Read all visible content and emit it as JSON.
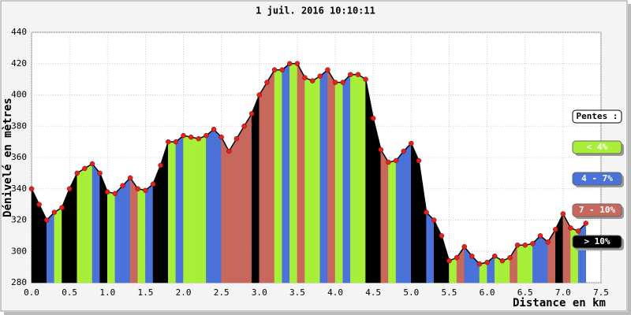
{
  "chart_data": {
    "type": "elevation-profile",
    "title": "1 juil. 2016 10:10:11",
    "x_label": "Distance en km",
    "y_label": "Dénivelé en mètres",
    "x": [
      0.0,
      0.1,
      0.2,
      0.3,
      0.4,
      0.5,
      0.6,
      0.7,
      0.8,
      0.9,
      1.0,
      1.1,
      1.2,
      1.3,
      1.4,
      1.5,
      1.6,
      1.7,
      1.8,
      1.9,
      2.0,
      2.1,
      2.2,
      2.3,
      2.4,
      2.5,
      2.6,
      2.7,
      2.8,
      2.9,
      3.0,
      3.1,
      3.2,
      3.3,
      3.4,
      3.5,
      3.6,
      3.7,
      3.8,
      3.9,
      4.0,
      4.1,
      4.2,
      4.3,
      4.4,
      4.5,
      4.6,
      4.7,
      4.8,
      4.9,
      5.0,
      5.1,
      5.2,
      5.3,
      5.4,
      5.5,
      5.6,
      5.7,
      5.8,
      5.9,
      6.0,
      6.1,
      6.2,
      6.3,
      6.4,
      6.5,
      6.6,
      6.7,
      6.8,
      6.9,
      7.0,
      7.1,
      7.2,
      7.3
    ],
    "values": [
      340,
      330,
      320,
      325,
      328,
      340,
      350,
      353,
      356,
      350,
      338,
      337,
      342,
      347,
      340,
      339,
      343,
      355,
      370,
      370,
      374,
      373,
      372,
      374,
      378,
      373,
      364,
      372,
      380,
      388,
      400,
      408,
      416,
      416,
      420,
      420,
      411,
      409,
      412,
      416,
      408,
      408,
      413,
      413,
      410,
      385,
      365,
      357,
      358,
      364,
      369,
      358,
      325,
      320,
      310,
      294,
      296,
      303,
      297,
      292,
      293,
      297,
      294,
      296,
      304,
      304,
      305,
      310,
      306,
      314,
      324,
      315,
      313,
      318
    ],
    "classes": [
      3,
      3,
      1,
      0,
      3,
      3,
      0,
      0,
      1,
      3,
      0,
      1,
      1,
      2,
      0,
      1,
      3,
      3,
      0,
      1,
      0,
      0,
      0,
      1,
      1,
      2,
      2,
      2,
      2,
      3,
      2,
      2,
      0,
      1,
      0,
      2,
      0,
      0,
      1,
      2,
      0,
      1,
      0,
      0,
      3,
      3,
      2,
      0,
      1,
      1,
      3,
      3,
      1,
      3,
      3,
      0,
      2,
      1,
      1,
      0,
      1,
      0,
      0,
      2,
      0,
      0,
      1,
      1,
      2,
      3,
      2,
      0,
      1,
      0
    ],
    "point_color": "#e0241c",
    "line_color": "#000000",
    "xlim": [
      0,
      7.5
    ],
    "xticks": [
      {
        "value": 0,
        "label": "0.0"
      },
      {
        "value": 0.5,
        "label": "0.5"
      },
      {
        "value": 1,
        "label": "1.0"
      },
      {
        "value": 1.5,
        "label": "1.5"
      },
      {
        "value": 2,
        "label": "2.0"
      },
      {
        "value": 2.5,
        "label": "2.5"
      },
      {
        "value": 3,
        "label": "3.0"
      },
      {
        "value": 3.5,
        "label": "3.5"
      },
      {
        "value": 4,
        "label": "4.0"
      },
      {
        "value": 4.5,
        "label": "4.5"
      },
      {
        "value": 5,
        "label": "5.0"
      },
      {
        "value": 5.5,
        "label": "5.5"
      },
      {
        "value": 6,
        "label": "6.0"
      },
      {
        "value": 6.5,
        "label": "6.5"
      },
      {
        "value": 7,
        "label": "7.0"
      },
      {
        "value": 7.5,
        "label": "7.5"
      }
    ],
    "ylim": [
      280,
      440
    ],
    "yticks": [
      280,
      300,
      320,
      340,
      360,
      380,
      400,
      420,
      440
    ],
    "grid": true,
    "legend": {
      "title": "Pentes :",
      "items": [
        {
          "label": "< 4%",
          "color": "#a8ef3a"
        },
        {
          "label": "4 - 7%",
          "color": "#4a72d8"
        },
        {
          "label": "7 - 10%",
          "color": "#c8685c"
        },
        {
          "label": "> 10%",
          "color": "#000000"
        }
      ]
    }
  }
}
